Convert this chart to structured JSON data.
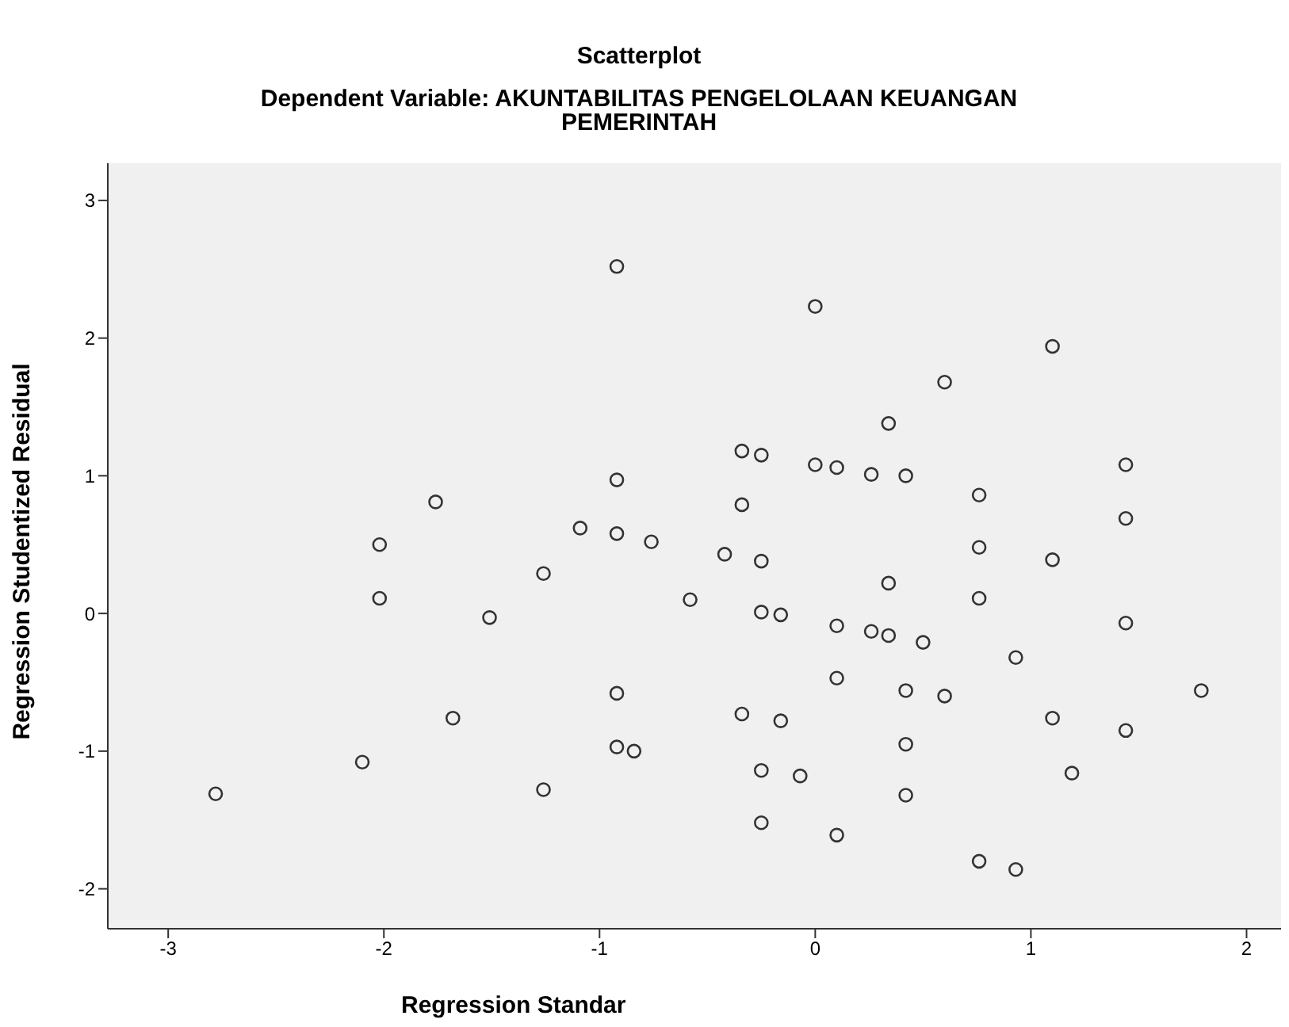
{
  "chart_data": {
    "type": "scatter",
    "title": "Scatterplot",
    "subtitle": "Dependent Variable: AKUNTABILITAS PENGELOLAAN KEUANGAN PEMERINTAH",
    "xlabel": "Regression Standar",
    "ylabel": "Regression Studentized Residual",
    "marker": "circle",
    "x": [
      -0.92,
      0,
      1.1,
      0.6,
      0.34,
      -0.34,
      -0.25,
      0,
      0.1,
      0.26,
      0.42,
      0.76,
      1.44,
      -0.92,
      -0.92,
      -1.76,
      -0.34,
      1.44,
      -1.09,
      -0.76,
      -2.02,
      0.76,
      1.1,
      -0.42,
      -0.25,
      -1.26,
      0.34,
      -0.58,
      -2.02,
      0.76,
      -1.51,
      -0.25,
      -0.16,
      0.1,
      0.26,
      0.34,
      0.5,
      1.44,
      0.93,
      0.1,
      0.42,
      0.6,
      1.79,
      -0.92,
      -0.34,
      1.1,
      -1.68,
      -0.16,
      1.44,
      0.42,
      -0.92,
      -0.84,
      -2.1,
      -0.25,
      -0.07,
      1.19,
      -1.26,
      -2.78,
      0.42,
      -0.25,
      0.1,
      0.76,
      0.93
    ],
    "series": [
      {
        "color": "#333333",
        "values": [
          2.52,
          2.23,
          1.94,
          1.68,
          1.38,
          1.18,
          1.15,
          1.08,
          1.06,
          1.01,
          1.0,
          0.86,
          1.08,
          0.97,
          0.58,
          0.81,
          0.79,
          0.69,
          0.62,
          0.52,
          0.5,
          0.48,
          0.39,
          0.43,
          0.38,
          0.29,
          0.22,
          0.1,
          0.11,
          0.11,
          -0.03,
          0.01,
          -0.01,
          -0.09,
          -0.13,
          -0.16,
          -0.21,
          -0.07,
          -0.32,
          -0.47,
          -0.56,
          -0.6,
          -0.56,
          -0.58,
          -0.73,
          -0.76,
          -0.76,
          -0.78,
          -0.85,
          -0.95,
          -0.97,
          -1.0,
          -1.08,
          -1.14,
          -1.18,
          -1.16,
          -1.28,
          -1.31,
          -1.32,
          -1.52,
          -1.61,
          -1.8,
          -1.86
        ]
      }
    ],
    "xlim": [
      -3.28,
      2.16
    ],
    "xticks": [
      -3,
      -2,
      -1,
      0,
      1,
      2
    ],
    "ylim": [
      -2.29,
      3.27
    ],
    "yticks": [
      -2,
      -1,
      0,
      1,
      2,
      3
    ]
  }
}
